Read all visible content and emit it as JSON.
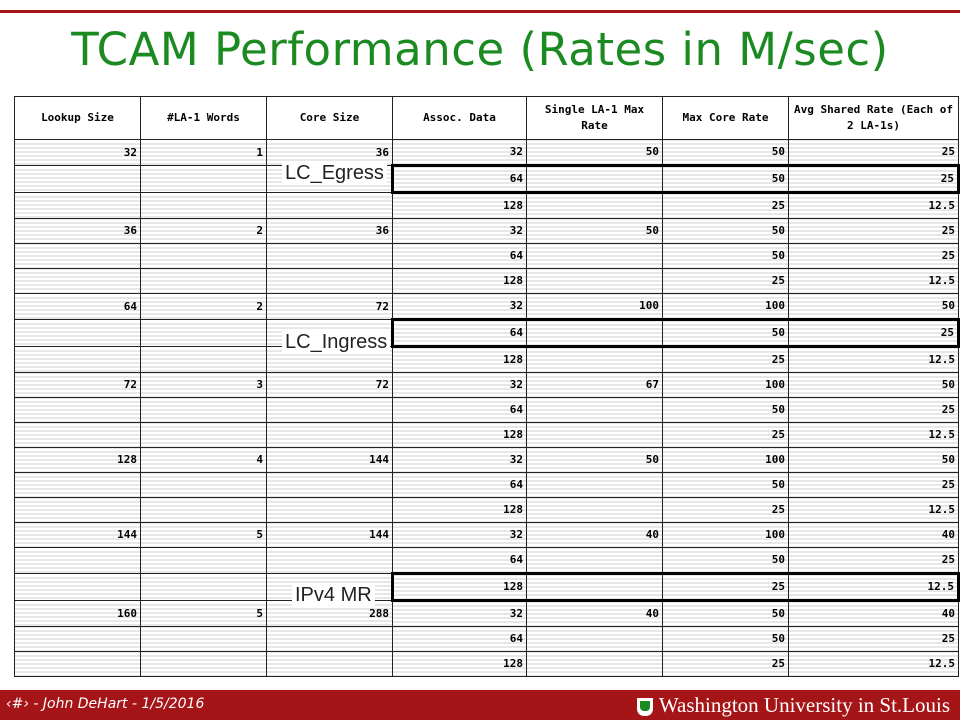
{
  "title": "TCAM Performance (Rates in M/sec)",
  "table": {
    "headers": [
      "Lookup Size",
      "#LA-1 Words",
      "Core Size",
      "Assoc. Data",
      "Single LA-1 Max Rate",
      "Max Core Rate",
      "Avg Shared Rate (Each of 2 LA-1s)"
    ],
    "rows": [
      [
        "32",
        "1",
        "36",
        "32",
        "50",
        "50",
        "25"
      ],
      [
        "",
        "",
        "",
        "64",
        "",
        "50",
        "25"
      ],
      [
        "",
        "",
        "",
        "128",
        "",
        "25",
        "12.5"
      ],
      [
        "36",
        "2",
        "36",
        "32",
        "50",
        "50",
        "25"
      ],
      [
        "",
        "",
        "",
        "64",
        "",
        "50",
        "25"
      ],
      [
        "",
        "",
        "",
        "128",
        "",
        "25",
        "12.5"
      ],
      [
        "64",
        "2",
        "72",
        "32",
        "100",
        "100",
        "50"
      ],
      [
        "",
        "",
        "",
        "64",
        "",
        "50",
        "25"
      ],
      [
        "",
        "",
        "",
        "128",
        "",
        "25",
        "12.5"
      ],
      [
        "72",
        "3",
        "72",
        "32",
        "67",
        "100",
        "50"
      ],
      [
        "",
        "",
        "",
        "64",
        "",
        "50",
        "25"
      ],
      [
        "",
        "",
        "",
        "128",
        "",
        "25",
        "12.5"
      ],
      [
        "128",
        "4",
        "144",
        "32",
        "50",
        "100",
        "50"
      ],
      [
        "",
        "",
        "",
        "64",
        "",
        "50",
        "25"
      ],
      [
        "",
        "",
        "",
        "128",
        "",
        "25",
        "12.5"
      ],
      [
        "144",
        "5",
        "144",
        "32",
        "40",
        "100",
        "40"
      ],
      [
        "",
        "",
        "",
        "64",
        "",
        "50",
        "25"
      ],
      [
        "",
        "",
        "",
        "128",
        "",
        "25",
        "12.5"
      ],
      [
        "160",
        "5",
        "288",
        "32",
        "40",
        "50",
        "40"
      ],
      [
        "",
        "",
        "",
        "64",
        "",
        "50",
        "25"
      ],
      [
        "",
        "",
        "",
        "128",
        "",
        "25",
        "12.5"
      ]
    ],
    "highlighted_rows": [
      1,
      7,
      17
    ]
  },
  "annotations": {
    "lc_egress": "LC_Egress",
    "lc_ingress": "LC_Ingress",
    "ipv4_mr": "IPv4 MR"
  },
  "footer": {
    "left_text": "‹#› - John DeHart - 1/5/2016",
    "right_text": "Washington University in St.Louis"
  },
  "colors": {
    "title": "#1b8a21",
    "brand": "#a51417"
  }
}
